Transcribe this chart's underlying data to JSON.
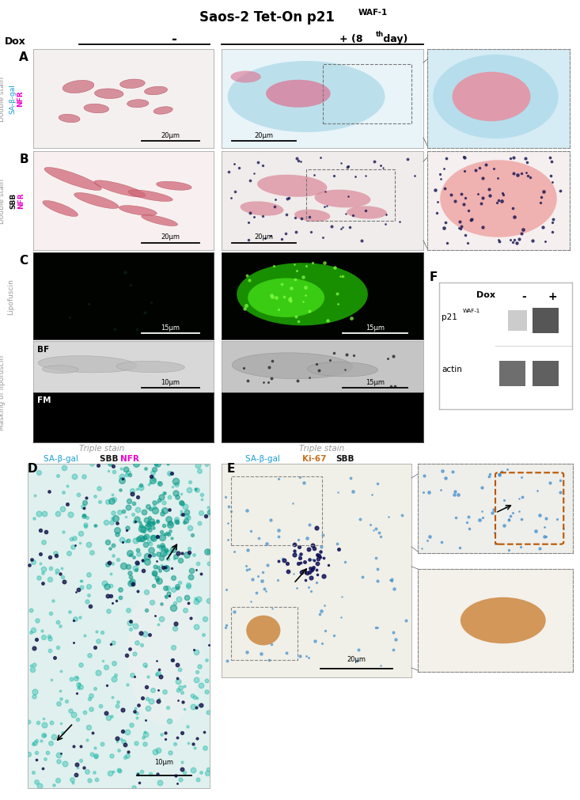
{
  "title": "Saos-2 Tet-On p21",
  "title_sup": "WAF-1",
  "dox_neg": "-",
  "dox_pos_pre": "+ (8",
  "dox_pos_sup": "th",
  "dox_pos_post": " day)",
  "bg_color": "#ffffff",
  "sa_bgal_color": "#1a9ed4",
  "nfr_color": "#ee00cc",
  "sbb_color": "#111111",
  "ki67_color": "#c87020",
  "gray_label": "#999999",
  "panel_A_neg_bg": "#f5f0f0",
  "panel_A_pos_bg": "#e8f4f8",
  "panel_B_neg_bg": "#f8f0f0",
  "panel_B_pos_bg": "#f0ecea",
  "panel_C_neg_bg": "#010301",
  "panel_C_pos_bg": "#010301",
  "panel_BF_neg_bg": "#d5d5d5",
  "panel_BF_pos_bg": "#c8c8c8",
  "panel_FM_bg": "#000000",
  "panel_D_bg": "#e5f6f4",
  "panel_E_bg": "#f4f4ef",
  "inset_A_bg": "#dbeef5",
  "inset_B_bg": "#f5eeee",
  "inset_E1_bg": "#eeeeea",
  "inset_E2_bg": "#f4eeea"
}
